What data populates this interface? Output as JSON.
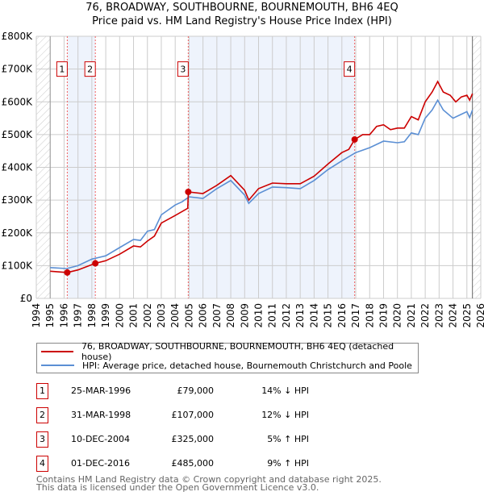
{
  "chart_data": {
    "type": "line",
    "title": "76, BROADWAY, SOUTHBOURNE, BOURNEMOUTH, BH6 4EQ",
    "subtitle": "Price paid vs. HM Land Registry's House Price Index (HPI)",
    "xlim": [
      1994,
      2026
    ],
    "ylim": [
      0,
      800000
    ],
    "x_ticks": [
      "1994",
      "1995",
      "1996",
      "1997",
      "1998",
      "1999",
      "2000",
      "2001",
      "2002",
      "2003",
      "2004",
      "2005",
      "2006",
      "2007",
      "2008",
      "2009",
      "2010",
      "2011",
      "2012",
      "2013",
      "2014",
      "2015",
      "2016",
      "2017",
      "2018",
      "2019",
      "2020",
      "2021",
      "2022",
      "2023",
      "2024",
      "2025",
      "2026"
    ],
    "y_ticks": [
      {
        "v": 0,
        "label": "£0"
      },
      {
        "v": 100000,
        "label": "£100K"
      },
      {
        "v": 200000,
        "label": "£200K"
      },
      {
        "v": 300000,
        "label": "£300K"
      },
      {
        "v": 400000,
        "label": "£400K"
      },
      {
        "v": 500000,
        "label": "£500K"
      },
      {
        "v": 600000,
        "label": "£600K"
      },
      {
        "v": 700000,
        "label": "£700K"
      },
      {
        "v": 800000,
        "label": "£800K"
      }
    ],
    "grid": true,
    "data_end": 2025.4,
    "colors": {
      "property": "#cc0000",
      "hpi": "#5b8fd4",
      "shade": "#eef3fc"
    },
    "series": [
      {
        "name": "76, BROADWAY, SOUTHBOURNE, BOURNEMOUTH, BH6 4EQ (detached house)",
        "key": "property",
        "points": [
          [
            1995,
            83000
          ],
          [
            1996.23,
            79000
          ],
          [
            1997,
            87000
          ],
          [
            1998.25,
            107000
          ],
          [
            1999,
            115000
          ],
          [
            2000,
            135000
          ],
          [
            2001,
            160000
          ],
          [
            2001.5,
            157000
          ],
          [
            2002,
            175000
          ],
          [
            2002.5,
            190000
          ],
          [
            2003,
            230000
          ],
          [
            2004,
            253000
          ],
          [
            2004.9,
            275000
          ],
          [
            2004.95,
            325000
          ],
          [
            2006,
            320000
          ],
          [
            2007,
            345000
          ],
          [
            2008,
            375000
          ],
          [
            2009,
            330000
          ],
          [
            2009.3,
            300000
          ],
          [
            2010,
            335000
          ],
          [
            2011,
            352000
          ],
          [
            2012,
            350000
          ],
          [
            2013,
            350000
          ],
          [
            2014,
            373000
          ],
          [
            2015,
            410000
          ],
          [
            2016,
            445000
          ],
          [
            2016.5,
            455000
          ],
          [
            2016.92,
            485000
          ],
          [
            2017.5,
            500000
          ],
          [
            2018,
            500000
          ],
          [
            2018.5,
            525000
          ],
          [
            2019,
            530000
          ],
          [
            2019.5,
            515000
          ],
          [
            2020,
            520000
          ],
          [
            2020.5,
            520000
          ],
          [
            2021,
            555000
          ],
          [
            2021.5,
            545000
          ],
          [
            2022,
            600000
          ],
          [
            2022.5,
            630000
          ],
          [
            2022.9,
            662000
          ],
          [
            2023.3,
            630000
          ],
          [
            2023.8,
            620000
          ],
          [
            2024.2,
            600000
          ],
          [
            2024.6,
            615000
          ],
          [
            2025,
            620000
          ],
          [
            2025.2,
            605000
          ],
          [
            2025.4,
            625000
          ]
        ]
      },
      {
        "name": "HPI: Average price, detached house, Bournemouth Christchurch and Poole",
        "key": "hpi",
        "points": [
          [
            1995,
            94000
          ],
          [
            1996.2,
            91000
          ],
          [
            1997,
            100000
          ],
          [
            1998,
            120000
          ],
          [
            1999,
            130000
          ],
          [
            2000,
            155000
          ],
          [
            2001,
            180000
          ],
          [
            2001.5,
            177000
          ],
          [
            2002,
            205000
          ],
          [
            2002.5,
            210000
          ],
          [
            2003,
            255000
          ],
          [
            2004,
            285000
          ],
          [
            2004.5,
            295000
          ],
          [
            2005,
            310000
          ],
          [
            2006,
            305000
          ],
          [
            2007,
            335000
          ],
          [
            2008,
            360000
          ],
          [
            2009,
            315000
          ],
          [
            2009.3,
            290000
          ],
          [
            2010,
            320000
          ],
          [
            2011,
            340000
          ],
          [
            2012,
            338000
          ],
          [
            2013,
            335000
          ],
          [
            2014,
            360000
          ],
          [
            2015,
            393000
          ],
          [
            2016,
            420000
          ],
          [
            2017,
            445000
          ],
          [
            2018,
            460000
          ],
          [
            2019,
            480000
          ],
          [
            2020,
            475000
          ],
          [
            2020.5,
            478000
          ],
          [
            2021,
            505000
          ],
          [
            2021.5,
            500000
          ],
          [
            2022,
            550000
          ],
          [
            2022.5,
            575000
          ],
          [
            2022.9,
            605000
          ],
          [
            2023.3,
            575000
          ],
          [
            2024,
            550000
          ],
          [
            2024.5,
            560000
          ],
          [
            2025,
            570000
          ],
          [
            2025.2,
            552000
          ],
          [
            2025.4,
            575000
          ]
        ]
      }
    ],
    "sales": [
      {
        "id": "1",
        "x": 1996.23,
        "price": 79000,
        "date": "25-MAR-1996",
        "price_label": "£79,000",
        "hpi_label": "14% ↓ HPI"
      },
      {
        "id": "2",
        "x": 1998.25,
        "price": 107000,
        "date": "31-MAR-1998",
        "price_label": "£107,000",
        "hpi_label": "12% ↓ HPI"
      },
      {
        "id": "3",
        "x": 2004.94,
        "price": 325000,
        "date": "10-DEC-2004",
        "price_label": "£325,000",
        "hpi_label": "5% ↑ HPI"
      },
      {
        "id": "4",
        "x": 2016.92,
        "price": 485000,
        "date": "01-DEC-2016",
        "price_label": "£485,000",
        "hpi_label": "9% ↑ HPI"
      }
    ]
  },
  "footer": {
    "line1": "Contains HM Land Registry data © Crown copyright and database right 2025.",
    "line2": "This data is licensed under the Open Government Licence v3.0."
  }
}
